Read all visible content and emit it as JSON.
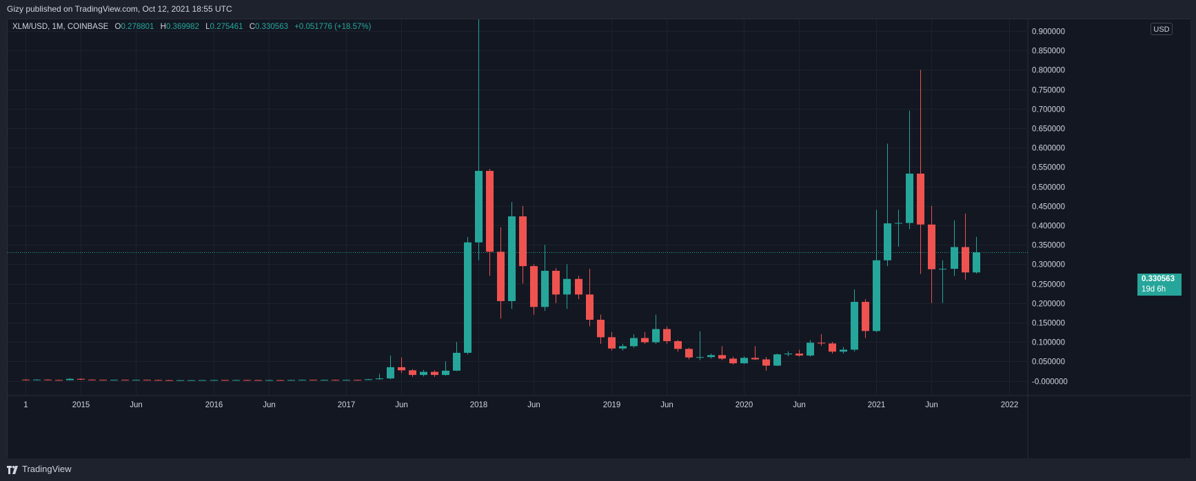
{
  "header": {
    "publisher_text": "Gizy published on TradingView.com, Oct 12, 2021 18:55 UTC"
  },
  "legend": {
    "symbol": "XLM/USD, 1M, COINBASE",
    "open_label": "O",
    "open": "0.278801",
    "high_label": "H",
    "high": "0.369982",
    "low_label": "L",
    "low": "0.275461",
    "close_label": "C",
    "close": "0.330563",
    "change": "+0.051776 (+18.57%)"
  },
  "price_axis": {
    "currency": "USD"
  },
  "last_price": {
    "value": "0.330563",
    "countdown": "19d 6h"
  },
  "footer": {
    "brand": "TradingView"
  },
  "colors": {
    "up": "#26a69a",
    "down": "#ef5350",
    "background": "#131722",
    "grid": "#1e222d",
    "axis_text": "#d1d4dc",
    "frame": "#1e222d"
  },
  "chart_data": {
    "type": "candlestick",
    "symbol": "XLM/USD",
    "interval": "1M",
    "exchange": "COINBASE",
    "y_axis": {
      "ticks": [
        "-0.000000",
        "0.050000",
        "0.100000",
        "0.150000",
        "0.200000",
        "0.250000",
        "0.300000",
        "0.350000",
        "0.400000",
        "0.450000",
        "0.500000",
        "0.550000",
        "0.600000",
        "0.650000",
        "0.700000",
        "0.750000",
        "0.800000",
        "0.850000",
        "0.900000"
      ],
      "range": [
        -0.038,
        0.93
      ]
    },
    "x_axis": {
      "ticks": [
        {
          "label": "1",
          "month": "2014-08"
        },
        {
          "label": "2015",
          "month": "2015-01"
        },
        {
          "label": "Jun",
          "month": "2015-06"
        },
        {
          "label": "2016",
          "month": "2016-01"
        },
        {
          "label": "Jun",
          "month": "2016-06"
        },
        {
          "label": "2017",
          "month": "2017-01"
        },
        {
          "label": "Jun",
          "month": "2017-06"
        },
        {
          "label": "2018",
          "month": "2018-01"
        },
        {
          "label": "Jun",
          "month": "2018-06"
        },
        {
          "label": "2019",
          "month": "2019-01"
        },
        {
          "label": "Jun",
          "month": "2019-06"
        },
        {
          "label": "2020",
          "month": "2020-01"
        },
        {
          "label": "Jun",
          "month": "2020-06"
        },
        {
          "label": "2021",
          "month": "2021-01"
        },
        {
          "label": "Jun",
          "month": "2021-06"
        },
        {
          "label": "2022",
          "month": "2022-01"
        }
      ]
    },
    "candles": [
      {
        "month": "2014-08",
        "open": 0.003,
        "high": 0.004,
        "low": 0.001,
        "close": 0.002
      },
      {
        "month": "2014-09",
        "open": 0.002,
        "high": 0.004,
        "low": 0.001,
        "close": 0.003
      },
      {
        "month": "2014-10",
        "open": 0.003,
        "high": 0.004,
        "low": 0.001,
        "close": 0.002
      },
      {
        "month": "2014-11",
        "open": 0.002,
        "high": 0.003,
        "low": 0.001,
        "close": 0.0015
      },
      {
        "month": "2014-12",
        "open": 0.0015,
        "high": 0.007,
        "low": 0.001,
        "close": 0.005
      },
      {
        "month": "2015-01",
        "open": 0.005,
        "high": 0.006,
        "low": 0.002,
        "close": 0.003
      },
      {
        "month": "2015-02",
        "open": 0.003,
        "high": 0.004,
        "low": 0.002,
        "close": 0.0025
      },
      {
        "month": "2015-03",
        "open": 0.0025,
        "high": 0.003,
        "low": 0.0015,
        "close": 0.002
      },
      {
        "month": "2015-04",
        "open": 0.002,
        "high": 0.003,
        "low": 0.0015,
        "close": 0.0025
      },
      {
        "month": "2015-05",
        "open": 0.0025,
        "high": 0.003,
        "low": 0.0015,
        "close": 0.002
      },
      {
        "month": "2015-06",
        "open": 0.002,
        "high": 0.003,
        "low": 0.0015,
        "close": 0.0025
      },
      {
        "month": "2015-07",
        "open": 0.0025,
        "high": 0.003,
        "low": 0.0015,
        "close": 0.002
      },
      {
        "month": "2015-08",
        "open": 0.002,
        "high": 0.003,
        "low": 0.001,
        "close": 0.0015
      },
      {
        "month": "2015-09",
        "open": 0.0015,
        "high": 0.0025,
        "low": 0.001,
        "close": 0.0012
      },
      {
        "month": "2015-10",
        "open": 0.0012,
        "high": 0.002,
        "low": 0.001,
        "close": 0.0015
      },
      {
        "month": "2015-11",
        "open": 0.0015,
        "high": 0.002,
        "low": 0.001,
        "close": 0.0016
      },
      {
        "month": "2015-12",
        "open": 0.0016,
        "high": 0.002,
        "low": 0.001,
        "close": 0.0018
      },
      {
        "month": "2016-01",
        "open": 0.0018,
        "high": 0.0025,
        "low": 0.0012,
        "close": 0.002
      },
      {
        "month": "2016-02",
        "open": 0.002,
        "high": 0.0025,
        "low": 0.0012,
        "close": 0.0018
      },
      {
        "month": "2016-03",
        "open": 0.0018,
        "high": 0.0025,
        "low": 0.0012,
        "close": 0.002
      },
      {
        "month": "2016-04",
        "open": 0.002,
        "high": 0.0025,
        "low": 0.0012,
        "close": 0.0018
      },
      {
        "month": "2016-05",
        "open": 0.0018,
        "high": 0.0025,
        "low": 0.0012,
        "close": 0.0016
      },
      {
        "month": "2016-06",
        "open": 0.0016,
        "high": 0.0025,
        "low": 0.0012,
        "close": 0.0018
      },
      {
        "month": "2016-07",
        "open": 0.0018,
        "high": 0.0025,
        "low": 0.0012,
        "close": 0.0016
      },
      {
        "month": "2016-08",
        "open": 0.0016,
        "high": 0.0025,
        "low": 0.0012,
        "close": 0.002
      },
      {
        "month": "2016-09",
        "open": 0.002,
        "high": 0.003,
        "low": 0.0015,
        "close": 0.0025
      },
      {
        "month": "2016-10",
        "open": 0.0025,
        "high": 0.003,
        "low": 0.0015,
        "close": 0.002
      },
      {
        "month": "2016-11",
        "open": 0.002,
        "high": 0.003,
        "low": 0.0015,
        "close": 0.0023
      },
      {
        "month": "2016-12",
        "open": 0.0023,
        "high": 0.003,
        "low": 0.0015,
        "close": 0.0021
      },
      {
        "month": "2017-01",
        "open": 0.0021,
        "high": 0.003,
        "low": 0.0015,
        "close": 0.0023
      },
      {
        "month": "2017-02",
        "open": 0.0023,
        "high": 0.003,
        "low": 0.0015,
        "close": 0.002
      },
      {
        "month": "2017-03",
        "open": 0.002,
        "high": 0.005,
        "low": 0.0018,
        "close": 0.004
      },
      {
        "month": "2017-04",
        "open": 0.004,
        "high": 0.018,
        "low": 0.003,
        "close": 0.006
      },
      {
        "month": "2017-05",
        "open": 0.006,
        "high": 0.065,
        "low": 0.004,
        "close": 0.035
      },
      {
        "month": "2017-06",
        "open": 0.035,
        "high": 0.06,
        "low": 0.02,
        "close": 0.027
      },
      {
        "month": "2017-07",
        "open": 0.027,
        "high": 0.03,
        "low": 0.01,
        "close": 0.015
      },
      {
        "month": "2017-08",
        "open": 0.015,
        "high": 0.028,
        "low": 0.011,
        "close": 0.023
      },
      {
        "month": "2017-09",
        "open": 0.023,
        "high": 0.027,
        "low": 0.01,
        "close": 0.015
      },
      {
        "month": "2017-10",
        "open": 0.015,
        "high": 0.05,
        "low": 0.013,
        "close": 0.026
      },
      {
        "month": "2017-11",
        "open": 0.026,
        "high": 0.1,
        "low": 0.025,
        "close": 0.072
      },
      {
        "month": "2017-12",
        "open": 0.072,
        "high": 0.37,
        "low": 0.068,
        "close": 0.356
      },
      {
        "month": "2018-01",
        "open": 0.356,
        "high": 0.935,
        "low": 0.31,
        "close": 0.54
      },
      {
        "month": "2018-02",
        "open": 0.54,
        "high": 0.545,
        "low": 0.27,
        "close": 0.332
      },
      {
        "month": "2018-03",
        "open": 0.332,
        "high": 0.395,
        "low": 0.16,
        "close": 0.205
      },
      {
        "month": "2018-04",
        "open": 0.205,
        "high": 0.46,
        "low": 0.185,
        "close": 0.423
      },
      {
        "month": "2018-05",
        "open": 0.423,
        "high": 0.45,
        "low": 0.25,
        "close": 0.295
      },
      {
        "month": "2018-06",
        "open": 0.295,
        "high": 0.3,
        "low": 0.17,
        "close": 0.19
      },
      {
        "month": "2018-07",
        "open": 0.19,
        "high": 0.35,
        "low": 0.18,
        "close": 0.283
      },
      {
        "month": "2018-08",
        "open": 0.283,
        "high": 0.29,
        "low": 0.2,
        "close": 0.222
      },
      {
        "month": "2018-09",
        "open": 0.222,
        "high": 0.3,
        "low": 0.185,
        "close": 0.262
      },
      {
        "month": "2018-10",
        "open": 0.262,
        "high": 0.27,
        "low": 0.21,
        "close": 0.222
      },
      {
        "month": "2018-11",
        "open": 0.222,
        "high": 0.288,
        "low": 0.14,
        "close": 0.157
      },
      {
        "month": "2018-12",
        "open": 0.157,
        "high": 0.17,
        "low": 0.095,
        "close": 0.112
      },
      {
        "month": "2019-01",
        "open": 0.112,
        "high": 0.125,
        "low": 0.078,
        "close": 0.083
      },
      {
        "month": "2019-02",
        "open": 0.083,
        "high": 0.095,
        "low": 0.078,
        "close": 0.089
      },
      {
        "month": "2019-03",
        "open": 0.089,
        "high": 0.12,
        "low": 0.085,
        "close": 0.11
      },
      {
        "month": "2019-04",
        "open": 0.11,
        "high": 0.125,
        "low": 0.095,
        "close": 0.099
      },
      {
        "month": "2019-05",
        "open": 0.099,
        "high": 0.17,
        "low": 0.095,
        "close": 0.133
      },
      {
        "month": "2019-06",
        "open": 0.133,
        "high": 0.14,
        "low": 0.095,
        "close": 0.102
      },
      {
        "month": "2019-07",
        "open": 0.102,
        "high": 0.105,
        "low": 0.075,
        "close": 0.082
      },
      {
        "month": "2019-08",
        "open": 0.082,
        "high": 0.085,
        "low": 0.055,
        "close": 0.06
      },
      {
        "month": "2019-09",
        "open": 0.06,
        "high": 0.127,
        "low": 0.053,
        "close": 0.061
      },
      {
        "month": "2019-10",
        "open": 0.061,
        "high": 0.07,
        "low": 0.057,
        "close": 0.066
      },
      {
        "month": "2019-11",
        "open": 0.066,
        "high": 0.089,
        "low": 0.053,
        "close": 0.057
      },
      {
        "month": "2019-12",
        "open": 0.057,
        "high": 0.062,
        "low": 0.042,
        "close": 0.045
      },
      {
        "month": "2020-01",
        "open": 0.045,
        "high": 0.063,
        "low": 0.043,
        "close": 0.059
      },
      {
        "month": "2020-02",
        "open": 0.059,
        "high": 0.089,
        "low": 0.054,
        "close": 0.055
      },
      {
        "month": "2020-03",
        "open": 0.055,
        "high": 0.061,
        "low": 0.026,
        "close": 0.039
      },
      {
        "month": "2020-04",
        "open": 0.039,
        "high": 0.07,
        "low": 0.038,
        "close": 0.068
      },
      {
        "month": "2020-05",
        "open": 0.068,
        "high": 0.076,
        "low": 0.063,
        "close": 0.07
      },
      {
        "month": "2020-06",
        "open": 0.07,
        "high": 0.08,
        "low": 0.062,
        "close": 0.065
      },
      {
        "month": "2020-07",
        "open": 0.065,
        "high": 0.105,
        "low": 0.062,
        "close": 0.098
      },
      {
        "month": "2020-08",
        "open": 0.098,
        "high": 0.12,
        "low": 0.09,
        "close": 0.096
      },
      {
        "month": "2020-09",
        "open": 0.096,
        "high": 0.1,
        "low": 0.07,
        "close": 0.075
      },
      {
        "month": "2020-10",
        "open": 0.075,
        "high": 0.087,
        "low": 0.07,
        "close": 0.08
      },
      {
        "month": "2020-11",
        "open": 0.08,
        "high": 0.235,
        "low": 0.075,
        "close": 0.203
      },
      {
        "month": "2020-12",
        "open": 0.203,
        "high": 0.21,
        "low": 0.11,
        "close": 0.128
      },
      {
        "month": "2021-01",
        "open": 0.128,
        "high": 0.44,
        "low": 0.125,
        "close": 0.31
      },
      {
        "month": "2021-02",
        "open": 0.31,
        "high": 0.61,
        "low": 0.295,
        "close": 0.405
      },
      {
        "month": "2021-03",
        "open": 0.405,
        "high": 0.44,
        "low": 0.345,
        "close": 0.406
      },
      {
        "month": "2021-04",
        "open": 0.406,
        "high": 0.695,
        "low": 0.39,
        "close": 0.533
      },
      {
        "month": "2021-05",
        "open": 0.533,
        "high": 0.8,
        "low": 0.275,
        "close": 0.402
      },
      {
        "month": "2021-06",
        "open": 0.402,
        "high": 0.45,
        "low": 0.2,
        "close": 0.287
      },
      {
        "month": "2021-07",
        "open": 0.287,
        "high": 0.31,
        "low": 0.2,
        "close": 0.288
      },
      {
        "month": "2021-08",
        "open": 0.288,
        "high": 0.413,
        "low": 0.27,
        "close": 0.344
      },
      {
        "month": "2021-09",
        "open": 0.344,
        "high": 0.43,
        "low": 0.26,
        "close": 0.2788
      },
      {
        "month": "2021-10",
        "open": 0.278801,
        "high": 0.369982,
        "low": 0.275461,
        "close": 0.330563
      }
    ]
  }
}
